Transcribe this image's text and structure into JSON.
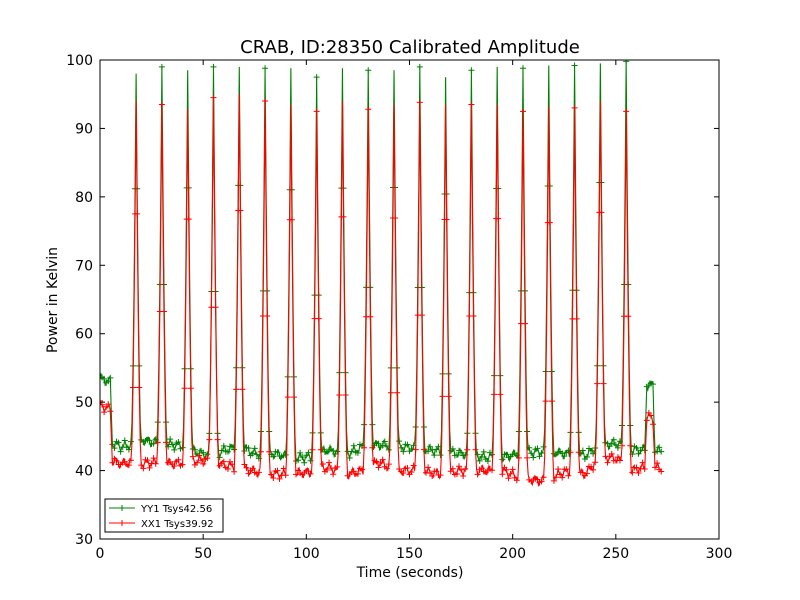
{
  "chart_data": {
    "type": "line",
    "title": "CRAB, ID:28350 Calibrated Amplitude",
    "xlabel": "Time (seconds)",
    "ylabel": "Power in Kelvin",
    "xlim": [
      0,
      300
    ],
    "ylim": [
      30,
      100
    ],
    "xticks": [
      0,
      50,
      100,
      150,
      200,
      250,
      300
    ],
    "yticks": [
      30,
      40,
      50,
      60,
      70,
      80,
      90,
      100
    ],
    "grid": false,
    "legend_position": "lower-left",
    "series": [
      {
        "name": "YY1 Tsys42.56",
        "color": "#008000",
        "marker": "+",
        "baseline": [
          [
            0,
            53.5
          ],
          [
            5,
            53.0
          ],
          [
            6,
            44.0
          ],
          [
            10,
            43.5
          ],
          [
            16,
            43.8
          ],
          [
            20,
            44.5
          ],
          [
            28,
            44.0
          ],
          [
            35,
            43.8
          ],
          [
            42,
            43.5
          ],
          [
            48,
            42.5
          ],
          [
            55,
            42.2
          ],
          [
            60,
            43.0
          ],
          [
            68,
            43.5
          ],
          [
            75,
            42.5
          ],
          [
            85,
            42.5
          ],
          [
            93,
            41.8
          ],
          [
            102,
            42.0
          ],
          [
            110,
            43.0
          ],
          [
            120,
            42.5
          ],
          [
            128,
            43.5
          ],
          [
            135,
            43.8
          ],
          [
            145,
            43.5
          ],
          [
            155,
            43.2
          ],
          [
            165,
            42.8
          ],
          [
            175,
            42.5
          ],
          [
            185,
            42.0
          ],
          [
            195,
            42.0
          ],
          [
            205,
            42.5
          ],
          [
            215,
            42.8
          ],
          [
            225,
            42.5
          ],
          [
            235,
            42.2
          ],
          [
            243,
            43.8
          ],
          [
            250,
            44.0
          ],
          [
            258,
            43.0
          ],
          [
            264,
            43.0
          ],
          [
            265,
            52.5
          ],
          [
            268,
            52.5
          ],
          [
            269,
            43.0
          ],
          [
            272,
            42.8
          ]
        ],
        "peaks": [
          [
            17.5,
            98
          ],
          [
            30,
            99
          ],
          [
            42.5,
            98.5
          ],
          [
            55,
            99
          ],
          [
            67.5,
            99
          ],
          [
            80,
            98.8
          ],
          [
            92.5,
            98.8
          ],
          [
            105,
            97.5
          ],
          [
            117.5,
            98.8
          ],
          [
            130,
            98.5
          ],
          [
            142.5,
            98.5
          ],
          [
            155,
            99
          ],
          [
            167.5,
            97.5
          ],
          [
            180,
            98.5
          ],
          [
            192.5,
            99
          ],
          [
            205,
            98.8
          ],
          [
            217.5,
            99.2
          ],
          [
            230,
            99.2
          ],
          [
            242.5,
            99.5
          ],
          [
            255,
            99.8
          ]
        ]
      },
      {
        "name": "XX1 Tsys39.92",
        "color": "#ff0000",
        "marker": "+",
        "baseline": [
          [
            0,
            49.5
          ],
          [
            5,
            49.0
          ],
          [
            6,
            41.5
          ],
          [
            10,
            41.0
          ],
          [
            16,
            41.2
          ],
          [
            20,
            41.0
          ],
          [
            28,
            41.2
          ],
          [
            35,
            41.0
          ],
          [
            42,
            41.3
          ],
          [
            48,
            41.5
          ],
          [
            55,
            41.5
          ],
          [
            60,
            40.8
          ],
          [
            68,
            40.5
          ],
          [
            75,
            39.8
          ],
          [
            85,
            39.5
          ],
          [
            93,
            39.5
          ],
          [
            102,
            39.8
          ],
          [
            110,
            40.5
          ],
          [
            120,
            39.5
          ],
          [
            128,
            40.0
          ],
          [
            135,
            41.2
          ],
          [
            145,
            40.0
          ],
          [
            155,
            40.0
          ],
          [
            165,
            39.5
          ],
          [
            175,
            40.0
          ],
          [
            185,
            40.0
          ],
          [
            195,
            40.0
          ],
          [
            205,
            38.8
          ],
          [
            215,
            38.5
          ],
          [
            225,
            39.8
          ],
          [
            235,
            39.5
          ],
          [
            243,
            42.0
          ],
          [
            250,
            41.8
          ],
          [
            258,
            40.0
          ],
          [
            264,
            40.5
          ],
          [
            265,
            48.0
          ],
          [
            268,
            47.5
          ],
          [
            269,
            40.5
          ],
          [
            272,
            40.3
          ]
        ],
        "peaks": [
          [
            17.5,
            94
          ],
          [
            30,
            93.5
          ],
          [
            42.5,
            92.8
          ],
          [
            55,
            94.5
          ],
          [
            67.5,
            95
          ],
          [
            80,
            94
          ],
          [
            92.5,
            93.5
          ],
          [
            105,
            92.5
          ],
          [
            117.5,
            94
          ],
          [
            130,
            92.8
          ],
          [
            142.5,
            93.5
          ],
          [
            155,
            93.8
          ],
          [
            167.5,
            93.5
          ],
          [
            180,
            93.5
          ],
          [
            192.5,
            93.5
          ],
          [
            205,
            92.5
          ],
          [
            217.5,
            93.2
          ],
          [
            230,
            93
          ],
          [
            242.5,
            94
          ],
          [
            255,
            92.5
          ]
        ]
      }
    ]
  }
}
